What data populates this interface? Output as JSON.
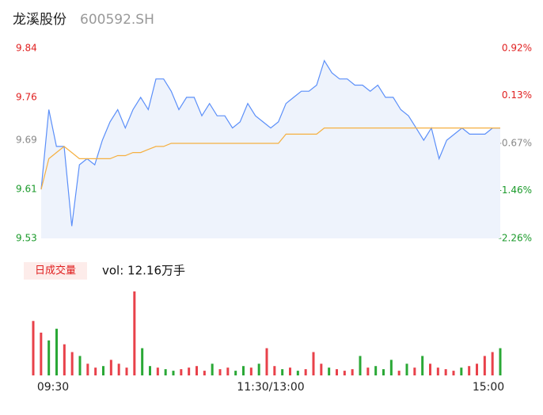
{
  "chart_data": [
    {
      "type": "line",
      "title": "龙溪股份",
      "subtitle": "600592.SH",
      "categories": [
        "09:30",
        null,
        null,
        null,
        null,
        null,
        null,
        null,
        null,
        null,
        null,
        null,
        null,
        null,
        null,
        null,
        null,
        null,
        null,
        null,
        null,
        null,
        null,
        null,
        null,
        null,
        null,
        null,
        null,
        null,
        "11:30/13:00",
        null,
        null,
        null,
        null,
        null,
        null,
        null,
        null,
        null,
        null,
        null,
        null,
        null,
        null,
        null,
        null,
        null,
        null,
        null,
        null,
        null,
        null,
        null,
        null,
        null,
        null,
        null,
        null,
        null,
        "15:00"
      ],
      "series": [
        {
          "color": "#5b8ff9",
          "fill": "#eef3fc",
          "values": [
            9.61,
            9.74,
            9.68,
            9.68,
            9.55,
            9.65,
            9.66,
            9.65,
            9.69,
            9.72,
            9.74,
            9.71,
            9.74,
            9.76,
            9.74,
            9.79,
            9.79,
            9.77,
            9.74,
            9.76,
            9.76,
            9.73,
            9.75,
            9.73,
            9.73,
            9.71,
            9.72,
            9.75,
            9.73,
            9.72,
            9.71,
            9.72,
            9.75,
            9.76,
            9.77,
            9.77,
            9.78,
            9.82,
            9.8,
            9.79,
            9.79,
            9.78,
            9.78,
            9.77,
            9.78,
            9.76,
            9.76,
            9.74,
            9.73,
            9.71,
            9.69,
            9.71,
            9.66,
            9.69,
            9.7,
            9.71,
            9.7,
            9.7,
            9.7,
            9.71,
            9.71
          ]
        },
        {
          "color": "#f5b041",
          "values": [
            9.61,
            9.66,
            9.67,
            9.68,
            9.67,
            9.66,
            9.66,
            9.66,
            9.66,
            9.66,
            9.665,
            9.665,
            9.67,
            9.67,
            9.675,
            9.68,
            9.68,
            9.685,
            9.685,
            9.685,
            9.685,
            9.685,
            9.685,
            9.685,
            9.685,
            9.685,
            9.685,
            9.685,
            9.685,
            9.685,
            9.685,
            9.685,
            9.7,
            9.7,
            9.7,
            9.7,
            9.7,
            9.71,
            9.71,
            9.71,
            9.71,
            9.71,
            9.71,
            9.71,
            9.71,
            9.71,
            9.71,
            9.71,
            9.71,
            9.71,
            9.71,
            9.71,
            9.71,
            9.71,
            9.71,
            9.71,
            9.71,
            9.71,
            9.71,
            9.71,
            9.71
          ]
        }
      ],
      "ylim": [
        9.53,
        9.84
      ],
      "yticks": [
        9.53,
        9.61,
        9.69,
        9.76,
        9.84
      ],
      "y2lim": [
        -2.26,
        0.92
      ],
      "y2ticks": [
        {
          "value": -2.26,
          "label": "-2.26%"
        },
        {
          "value": -1.46,
          "label": "-1.46%"
        },
        {
          "value": -0.67,
          "label": "-0.67%"
        },
        {
          "value": 0.13,
          "label": "0.13%"
        },
        {
          "value": 0.92,
          "label": "0.92%"
        }
      ],
      "tick_colors": [
        "#1a9a2a",
        "#1a9a2a",
        "#888888",
        "#e02020",
        "#e02020"
      ]
    },
    {
      "type": "bar",
      "label": "日成交量",
      "summary": "vol: 12.16万手",
      "values": [
        70,
        55,
        45,
        60,
        40,
        30,
        25,
        15,
        10,
        12,
        20,
        15,
        10,
        108,
        35,
        12,
        10,
        8,
        6,
        8,
        10,
        12,
        6,
        15,
        8,
        10,
        6,
        12,
        10,
        15,
        35,
        12,
        8,
        10,
        6,
        8,
        30,
        15,
        10,
        8,
        6,
        8,
        25,
        10,
        12,
        8,
        20,
        6,
        15,
        10,
        25,
        15,
        10,
        8,
        6,
        10,
        12,
        15,
        25,
        30,
        35
      ],
      "colors": [
        "#e8414a",
        "#e8414a",
        "#2aa836",
        "#2aa836",
        "#e8414a",
        "#e8414a",
        "#2aa836",
        "#e8414a",
        "#e8414a",
        "#2aa836",
        "#e8414a",
        "#e8414a",
        "#e8414a",
        "#e8414a",
        "#2aa836",
        "#2aa836",
        "#e8414a",
        "#2aa836",
        "#2aa836",
        "#e8414a",
        "#e8414a",
        "#e8414a",
        "#e8414a",
        "#2aa836",
        "#e8414a",
        "#e8414a",
        "#2aa836",
        "#2aa836",
        "#e8414a",
        "#2aa836",
        "#e8414a",
        "#e8414a",
        "#2aa836",
        "#e8414a",
        "#2aa836",
        "#e8414a",
        "#e8414a",
        "#e8414a",
        "#2aa836",
        "#e8414a",
        "#e8414a",
        "#e8414a",
        "#2aa836",
        "#e8414a",
        "#2aa836",
        "#2aa836",
        "#2aa836",
        "#e8414a",
        "#2aa836",
        "#e8414a",
        "#2aa836",
        "#e8414a",
        "#e8414a",
        "#e8414a",
        "#e8414a",
        "#2aa836",
        "#e8414a",
        "#e8414a",
        "#e8414a",
        "#e8414a",
        "#2aa836"
      ],
      "ylim": [
        0,
        110
      ]
    }
  ]
}
